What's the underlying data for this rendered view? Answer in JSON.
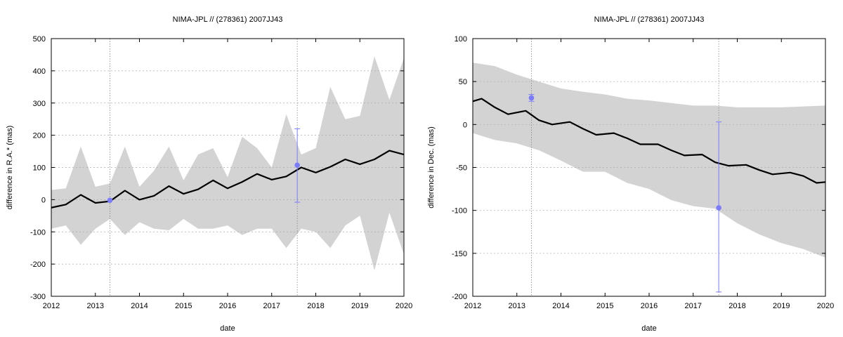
{
  "chart_data": [
    {
      "type": "line",
      "title": "NIMA-JPL // (278361) 2007JJ43",
      "xlabel": "date",
      "ylabel": "difference in R.A.* (mas)",
      "xlim": [
        2012,
        2020
      ],
      "ylim": [
        -300,
        500
      ],
      "x_ticks": [
        "2012",
        "2013",
        "2014",
        "2015",
        "2016",
        "2017",
        "2018",
        "2019",
        "2020"
      ],
      "y_ticks": [
        "-300",
        "-200",
        "-100",
        "0",
        "100",
        "200",
        "300",
        "400",
        "500"
      ],
      "grid": true,
      "series": [
        {
          "kind": "line",
          "color": "#000000",
          "x": [
            2012.0,
            2012.33,
            2012.67,
            2013.0,
            2013.33,
            2013.67,
            2014.0,
            2014.33,
            2014.67,
            2015.0,
            2015.33,
            2015.67,
            2016.0,
            2016.33,
            2016.67,
            2017.0,
            2017.33,
            2017.67,
            2018.0,
            2018.33,
            2018.67,
            2019.0,
            2019.33,
            2019.67,
            2020.0
          ],
          "y": [
            -25,
            -15,
            15,
            -10,
            -5,
            28,
            0,
            12,
            42,
            18,
            32,
            60,
            35,
            55,
            80,
            62,
            72,
            100,
            84,
            102,
            125,
            110,
            125,
            152,
            140
          ]
        },
        {
          "kind": "band",
          "color": "#d3d3d3",
          "x": [
            2012.0,
            2012.33,
            2012.67,
            2013.0,
            2013.33,
            2013.67,
            2014.0,
            2014.33,
            2014.67,
            2015.0,
            2015.33,
            2015.67,
            2016.0,
            2016.33,
            2016.67,
            2017.0,
            2017.33,
            2017.67,
            2018.0,
            2018.33,
            2018.67,
            2019.0,
            2019.33,
            2019.67,
            2020.0
          ],
          "upper": [
            30,
            35,
            165,
            40,
            50,
            165,
            40,
            90,
            165,
            60,
            140,
            160,
            70,
            195,
            160,
            100,
            265,
            140,
            160,
            350,
            250,
            260,
            445,
            310,
            440
          ],
          "lower": [
            -90,
            -80,
            -140,
            -90,
            -60,
            -110,
            -70,
            -90,
            -95,
            -60,
            -90,
            -90,
            -80,
            -110,
            -90,
            -90,
            -150,
            -90,
            -100,
            -150,
            -80,
            -50,
            -220,
            -40,
            -170
          ]
        }
      ],
      "observations": [
        {
          "x": 2013.33,
          "y": -2,
          "err_low": -2,
          "err_high": -2,
          "color": "#7b7bff"
        },
        {
          "x": 2017.58,
          "y": 107,
          "err_low": -8,
          "err_high": 220,
          "color": "#7b7bff"
        }
      ],
      "vlines": [
        2013.33,
        2017.58
      ]
    },
    {
      "type": "line",
      "title": "NIMA-JPL // (278361) 2007JJ43",
      "xlabel": "date",
      "ylabel": "difference in Dec. (mas)",
      "xlim": [
        2012,
        2020
      ],
      "ylim": [
        -200,
        100
      ],
      "x_ticks": [
        "2012",
        "2013",
        "2014",
        "2015",
        "2016",
        "2017",
        "2018",
        "2019",
        "2020"
      ],
      "y_ticks": [
        "-200",
        "-150",
        "-100",
        "-50",
        "0",
        "50",
        "100"
      ],
      "grid": true,
      "series": [
        {
          "kind": "line",
          "color": "#000000",
          "x": [
            2012.0,
            2012.2,
            2012.5,
            2012.8,
            2013.2,
            2013.5,
            2013.8,
            2014.2,
            2014.5,
            2014.8,
            2015.2,
            2015.5,
            2015.8,
            2016.2,
            2016.5,
            2016.8,
            2017.2,
            2017.5,
            2017.8,
            2018.2,
            2018.5,
            2018.8,
            2019.2,
            2019.5,
            2019.8,
            2020.0
          ],
          "y": [
            27,
            30,
            20,
            12,
            16,
            5,
            0,
            3,
            -5,
            -12,
            -10,
            -16,
            -23,
            -23,
            -30,
            -36,
            -35,
            -44,
            -48,
            -47,
            -53,
            -58,
            -56,
            -60,
            -68,
            -67
          ]
        },
        {
          "kind": "band",
          "color": "#d3d3d3",
          "x": [
            2012.0,
            2012.5,
            2013.0,
            2013.5,
            2014.0,
            2014.5,
            2015.0,
            2015.5,
            2016.0,
            2016.5,
            2017.0,
            2017.5,
            2018.0,
            2018.5,
            2019.0,
            2019.5,
            2020.0
          ],
          "upper": [
            72,
            68,
            58,
            50,
            42,
            38,
            35,
            30,
            28,
            25,
            22,
            22,
            20,
            20,
            20,
            21,
            22
          ],
          "lower": [
            -10,
            -18,
            -22,
            -30,
            -42,
            -55,
            -55,
            -68,
            -75,
            -88,
            -95,
            -98,
            -115,
            -128,
            -138,
            -145,
            -155
          ]
        }
      ],
      "observations": [
        {
          "x": 2013.33,
          "y": 31,
          "err_low": 27,
          "err_high": 35,
          "color": "#7b7bff"
        },
        {
          "x": 2017.58,
          "y": -97,
          "err_low": -195,
          "err_high": 3,
          "color": "#7b7bff"
        }
      ],
      "vlines": [
        2013.33,
        2017.58
      ]
    }
  ]
}
